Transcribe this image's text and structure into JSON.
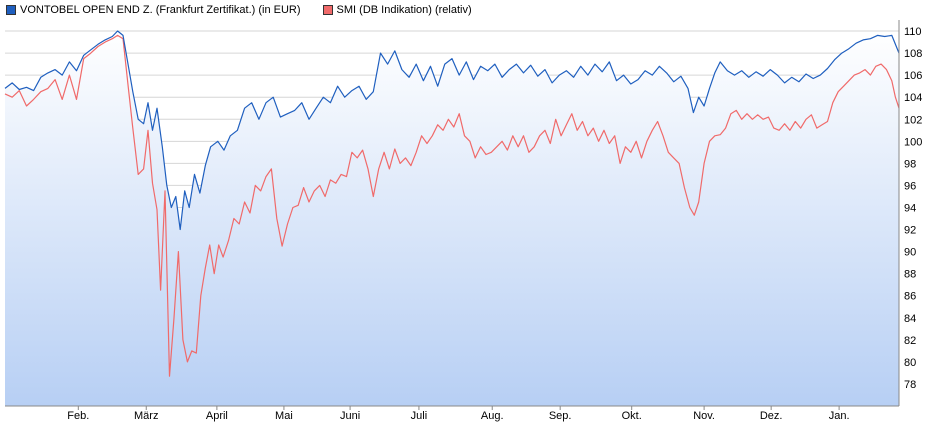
{
  "chart_data": {
    "type": "line",
    "title": "",
    "xlabel": "",
    "ylabel": "",
    "ylim": [
      76,
      111
    ],
    "y_ticks": [
      78,
      80,
      82,
      84,
      86,
      88,
      90,
      92,
      94,
      96,
      98,
      100,
      102,
      104,
      106,
      108,
      110
    ],
    "x_range": [
      0,
      100
    ],
    "x_ticks": [
      {
        "label": "Feb.",
        "x": 8.2
      },
      {
        "label": "März",
        "x": 15.8
      },
      {
        "label": "April",
        "x": 23.7
      },
      {
        "label": "Mai",
        "x": 31.2
      },
      {
        "label": "Juni",
        "x": 38.6
      },
      {
        "label": "Juli",
        "x": 46.3
      },
      {
        "label": "Aug.",
        "x": 54.5
      },
      {
        "label": "Sep.",
        "x": 62.1
      },
      {
        "label": "Okt.",
        "x": 70.1
      },
      {
        "label": "Nov.",
        "x": 78.2
      },
      {
        "label": "Dez.",
        "x": 85.7
      },
      {
        "label": "Jan.",
        "x": 93.3
      }
    ],
    "grid": "horizontal",
    "legend_position": "top-left",
    "series": [
      {
        "name": "VONTOBEL OPEN END Z. (Frankfurt Zertifikat.) (in EUR)",
        "color": "#1f5fbf",
        "points": [
          [
            0,
            104.8
          ],
          [
            0.8,
            105.3
          ],
          [
            1.6,
            104.7
          ],
          [
            2.4,
            104.9
          ],
          [
            3.2,
            104.6
          ],
          [
            4.0,
            105.8
          ],
          [
            4.8,
            106.2
          ],
          [
            5.6,
            106.5
          ],
          [
            6.4,
            106.0
          ],
          [
            7.2,
            107.2
          ],
          [
            8.0,
            106.4
          ],
          [
            8.8,
            107.8
          ],
          [
            9.6,
            108.3
          ],
          [
            10.4,
            108.8
          ],
          [
            11.2,
            109.2
          ],
          [
            12.0,
            109.5
          ],
          [
            12.6,
            110.0
          ],
          [
            13.2,
            109.6
          ],
          [
            13.8,
            106.8
          ],
          [
            14.3,
            104.5
          ],
          [
            14.9,
            102.0
          ],
          [
            15.5,
            101.6
          ],
          [
            16.0,
            103.5
          ],
          [
            16.5,
            101.0
          ],
          [
            17.0,
            103.0
          ],
          [
            17.6,
            99.5
          ],
          [
            18.1,
            96.0
          ],
          [
            18.6,
            94.0
          ],
          [
            19.1,
            95.0
          ],
          [
            19.6,
            92.0
          ],
          [
            20.1,
            95.5
          ],
          [
            20.6,
            94.0
          ],
          [
            21.2,
            97.0
          ],
          [
            21.8,
            95.3
          ],
          [
            22.4,
            97.8
          ],
          [
            23.0,
            99.5
          ],
          [
            23.8,
            100.0
          ],
          [
            24.5,
            99.2
          ],
          [
            25.2,
            100.5
          ],
          [
            26.0,
            101.0
          ],
          [
            26.8,
            103.0
          ],
          [
            27.6,
            103.5
          ],
          [
            28.4,
            102.0
          ],
          [
            29.2,
            103.5
          ],
          [
            30.0,
            104.0
          ],
          [
            30.8,
            102.2
          ],
          [
            31.6,
            102.5
          ],
          [
            32.4,
            102.8
          ],
          [
            33.2,
            103.5
          ],
          [
            34.0,
            102.0
          ],
          [
            34.8,
            103.0
          ],
          [
            35.6,
            104.0
          ],
          [
            36.4,
            103.5
          ],
          [
            37.2,
            105.0
          ],
          [
            38.0,
            104.0
          ],
          [
            38.8,
            104.6
          ],
          [
            39.6,
            105.0
          ],
          [
            40.4,
            103.8
          ],
          [
            41.2,
            104.5
          ],
          [
            42.0,
            108.0
          ],
          [
            42.8,
            107.0
          ],
          [
            43.6,
            108.2
          ],
          [
            44.4,
            106.5
          ],
          [
            45.2,
            105.8
          ],
          [
            46.0,
            107.0
          ],
          [
            46.8,
            105.5
          ],
          [
            47.6,
            106.8
          ],
          [
            48.4,
            105.0
          ],
          [
            49.2,
            107.0
          ],
          [
            50.0,
            107.5
          ],
          [
            50.8,
            106.0
          ],
          [
            51.6,
            107.2
          ],
          [
            52.4,
            105.6
          ],
          [
            53.2,
            106.8
          ],
          [
            54.0,
            106.4
          ],
          [
            54.8,
            107.0
          ],
          [
            55.6,
            105.8
          ],
          [
            56.4,
            106.5
          ],
          [
            57.2,
            107.0
          ],
          [
            58.0,
            106.2
          ],
          [
            58.8,
            106.9
          ],
          [
            59.6,
            105.9
          ],
          [
            60.4,
            106.5
          ],
          [
            61.2,
            105.3
          ],
          [
            62.0,
            106.0
          ],
          [
            62.8,
            106.4
          ],
          [
            63.6,
            105.8
          ],
          [
            64.4,
            106.8
          ],
          [
            65.2,
            106.0
          ],
          [
            66.0,
            107.0
          ],
          [
            66.8,
            106.3
          ],
          [
            67.6,
            107.2
          ],
          [
            68.4,
            105.5
          ],
          [
            69.2,
            106.0
          ],
          [
            70.0,
            105.2
          ],
          [
            70.8,
            105.6
          ],
          [
            71.6,
            106.4
          ],
          [
            72.4,
            106.0
          ],
          [
            73.2,
            106.8
          ],
          [
            74.0,
            106.2
          ],
          [
            74.8,
            105.4
          ],
          [
            75.6,
            105.9
          ],
          [
            76.4,
            104.8
          ],
          [
            77.0,
            102.6
          ],
          [
            77.6,
            104.0
          ],
          [
            78.2,
            103.2
          ],
          [
            78.8,
            104.8
          ],
          [
            79.4,
            106.2
          ],
          [
            80.0,
            107.2
          ],
          [
            80.8,
            106.4
          ],
          [
            81.6,
            106.0
          ],
          [
            82.4,
            106.4
          ],
          [
            83.2,
            105.8
          ],
          [
            84.0,
            106.3
          ],
          [
            84.8,
            105.9
          ],
          [
            85.6,
            106.5
          ],
          [
            86.4,
            106.0
          ],
          [
            87.2,
            105.3
          ],
          [
            88.0,
            105.8
          ],
          [
            88.8,
            105.4
          ],
          [
            89.6,
            106.1
          ],
          [
            90.4,
            105.7
          ],
          [
            91.2,
            106.0
          ],
          [
            92.0,
            106.6
          ],
          [
            92.8,
            107.4
          ],
          [
            93.6,
            108.0
          ],
          [
            94.4,
            108.4
          ],
          [
            95.2,
            108.9
          ],
          [
            96.0,
            109.2
          ],
          [
            96.8,
            109.3
          ],
          [
            97.6,
            109.6
          ],
          [
            98.4,
            109.5
          ],
          [
            99.2,
            109.6
          ],
          [
            100,
            108.0
          ]
        ]
      },
      {
        "name": "SMI (DB Indikation) (relativ)",
        "color": "#f06a6a",
        "points": [
          [
            0,
            104.3
          ],
          [
            0.8,
            104.0
          ],
          [
            1.6,
            104.6
          ],
          [
            2.4,
            103.2
          ],
          [
            3.2,
            103.8
          ],
          [
            4.0,
            104.5
          ],
          [
            4.8,
            104.8
          ],
          [
            5.6,
            105.6
          ],
          [
            6.4,
            103.8
          ],
          [
            7.2,
            106.0
          ],
          [
            8.0,
            103.8
          ],
          [
            8.8,
            107.5
          ],
          [
            9.6,
            108.0
          ],
          [
            10.4,
            108.6
          ],
          [
            11.2,
            109.0
          ],
          [
            12.0,
            109.3
          ],
          [
            12.6,
            109.6
          ],
          [
            13.2,
            109.3
          ],
          [
            13.8,
            104.8
          ],
          [
            14.3,
            101.2
          ],
          [
            14.9,
            97.0
          ],
          [
            15.5,
            97.5
          ],
          [
            16.0,
            101.0
          ],
          [
            16.5,
            96.2
          ],
          [
            17.0,
            93.8
          ],
          [
            17.4,
            86.5
          ],
          [
            17.9,
            95.5
          ],
          [
            18.4,
            78.7
          ],
          [
            18.9,
            84.0
          ],
          [
            19.4,
            90.0
          ],
          [
            19.9,
            82.0
          ],
          [
            20.4,
            80.0
          ],
          [
            20.9,
            81.0
          ],
          [
            21.4,
            80.8
          ],
          [
            21.9,
            86.0
          ],
          [
            22.4,
            88.5
          ],
          [
            22.9,
            90.6
          ],
          [
            23.4,
            88.0
          ],
          [
            23.9,
            90.6
          ],
          [
            24.4,
            89.5
          ],
          [
            25.0,
            91.0
          ],
          [
            25.6,
            93.0
          ],
          [
            26.2,
            92.5
          ],
          [
            26.8,
            94.5
          ],
          [
            27.4,
            93.5
          ],
          [
            28.0,
            96.0
          ],
          [
            28.6,
            95.5
          ],
          [
            29.2,
            96.8
          ],
          [
            29.8,
            97.5
          ],
          [
            30.4,
            93.0
          ],
          [
            31.0,
            90.5
          ],
          [
            31.6,
            92.5
          ],
          [
            32.2,
            94.0
          ],
          [
            32.8,
            94.2
          ],
          [
            33.4,
            95.8
          ],
          [
            34.0,
            94.5
          ],
          [
            34.6,
            95.5
          ],
          [
            35.2,
            96.0
          ],
          [
            35.8,
            95.0
          ],
          [
            36.4,
            96.5
          ],
          [
            37.0,
            96.2
          ],
          [
            37.6,
            97.0
          ],
          [
            38.2,
            96.8
          ],
          [
            38.8,
            99.0
          ],
          [
            39.4,
            98.5
          ],
          [
            40.0,
            99.2
          ],
          [
            40.6,
            97.5
          ],
          [
            41.2,
            95.0
          ],
          [
            41.8,
            97.5
          ],
          [
            42.4,
            99.0
          ],
          [
            43.0,
            97.5
          ],
          [
            43.6,
            99.3
          ],
          [
            44.2,
            98.0
          ],
          [
            44.8,
            98.5
          ],
          [
            45.4,
            97.8
          ],
          [
            46.0,
            99.0
          ],
          [
            46.6,
            100.5
          ],
          [
            47.2,
            99.8
          ],
          [
            47.8,
            100.5
          ],
          [
            48.4,
            101.5
          ],
          [
            49.0,
            101.0
          ],
          [
            49.6,
            102.0
          ],
          [
            50.2,
            101.3
          ],
          [
            50.8,
            102.5
          ],
          [
            51.4,
            100.5
          ],
          [
            52.0,
            100.0
          ],
          [
            52.6,
            98.5
          ],
          [
            53.2,
            99.5
          ],
          [
            53.8,
            98.8
          ],
          [
            54.4,
            99.0
          ],
          [
            55.0,
            99.5
          ],
          [
            55.6,
            100.0
          ],
          [
            56.2,
            99.2
          ],
          [
            56.8,
            100.5
          ],
          [
            57.4,
            99.5
          ],
          [
            58.0,
            100.5
          ],
          [
            58.6,
            99.0
          ],
          [
            59.2,
            99.5
          ],
          [
            59.8,
            100.5
          ],
          [
            60.4,
            101.0
          ],
          [
            61.0,
            99.8
          ],
          [
            61.6,
            102.0
          ],
          [
            62.2,
            100.5
          ],
          [
            62.8,
            101.5
          ],
          [
            63.4,
            102.5
          ],
          [
            64.0,
            101.0
          ],
          [
            64.6,
            101.8
          ],
          [
            65.2,
            100.5
          ],
          [
            65.8,
            101.2
          ],
          [
            66.4,
            100.0
          ],
          [
            67.0,
            101.0
          ],
          [
            67.6,
            99.8
          ],
          [
            68.2,
            100.5
          ],
          [
            68.8,
            98.0
          ],
          [
            69.4,
            99.5
          ],
          [
            70.0,
            99.0
          ],
          [
            70.6,
            100.0
          ],
          [
            71.2,
            98.5
          ],
          [
            71.8,
            100.0
          ],
          [
            72.4,
            101.0
          ],
          [
            73.0,
            101.8
          ],
          [
            73.6,
            100.5
          ],
          [
            74.2,
            99.0
          ],
          [
            74.8,
            98.5
          ],
          [
            75.4,
            98.0
          ],
          [
            76.0,
            95.8
          ],
          [
            76.6,
            94.0
          ],
          [
            77.1,
            93.3
          ],
          [
            77.6,
            94.5
          ],
          [
            78.2,
            98.0
          ],
          [
            78.8,
            100.0
          ],
          [
            79.4,
            100.5
          ],
          [
            80.0,
            100.6
          ],
          [
            80.6,
            101.2
          ],
          [
            81.2,
            102.5
          ],
          [
            81.8,
            102.8
          ],
          [
            82.4,
            102.0
          ],
          [
            83.0,
            102.5
          ],
          [
            83.6,
            102.0
          ],
          [
            84.2,
            102.4
          ],
          [
            84.8,
            102.0
          ],
          [
            85.4,
            102.2
          ],
          [
            86.0,
            101.2
          ],
          [
            86.6,
            101.0
          ],
          [
            87.2,
            101.6
          ],
          [
            87.8,
            101.0
          ],
          [
            88.4,
            101.8
          ],
          [
            89.0,
            101.2
          ],
          [
            89.6,
            102.0
          ],
          [
            90.2,
            102.4
          ],
          [
            90.8,
            101.2
          ],
          [
            91.4,
            101.5
          ],
          [
            92.0,
            101.8
          ],
          [
            92.6,
            103.5
          ],
          [
            93.2,
            104.5
          ],
          [
            93.8,
            105.0
          ],
          [
            94.4,
            105.5
          ],
          [
            95.0,
            106.0
          ],
          [
            95.6,
            106.2
          ],
          [
            96.2,
            106.5
          ],
          [
            96.8,
            106.0
          ],
          [
            97.4,
            106.8
          ],
          [
            98.0,
            107.0
          ],
          [
            98.6,
            106.5
          ],
          [
            99.2,
            105.5
          ],
          [
            99.6,
            104.0
          ],
          [
            100,
            103.0
          ]
        ]
      }
    ]
  }
}
